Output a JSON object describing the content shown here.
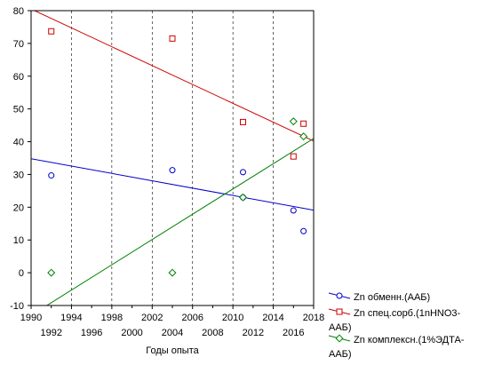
{
  "chart_data": {
    "type": "scatter",
    "title": "",
    "xlabel": "Годы опыта",
    "ylabel": "",
    "xlim": [
      1990,
      2018
    ],
    "ylim": [
      -10,
      80
    ],
    "x_ticks_upper": [
      1990,
      1994,
      1998,
      2002,
      2006,
      2010,
      2014,
      2018
    ],
    "x_ticks_lower": [
      1992,
      1996,
      2000,
      2004,
      2008,
      2012,
      2016
    ],
    "y_ticks": [
      -10,
      0,
      10,
      20,
      30,
      40,
      50,
      60,
      70,
      80
    ],
    "grid": "vertical-dashed",
    "legend_position": "bottom-right",
    "series": [
      {
        "name_lines": [
          "Zn   обменн.(ААБ)"
        ],
        "color": "#0000cc",
        "marker": "circle",
        "points": [
          {
            "x": 1992,
            "y": 29.7
          },
          {
            "x": 2004,
            "y": 31.3
          },
          {
            "x": 2011,
            "y": 30.7
          },
          {
            "x": 2011,
            "y": 23.0
          },
          {
            "x": 2016,
            "y": 19.0
          },
          {
            "x": 2017,
            "y": 12.7
          }
        ],
        "fit": {
          "x": [
            1990,
            2018
          ],
          "y": [
            34.8,
            19.1
          ]
        }
      },
      {
        "name_lines": [
          "Zn спец.сорб.(1nHNO3-",
          "ААБ)"
        ],
        "color": "#cc0000",
        "marker": "square",
        "points": [
          {
            "x": 1992,
            "y": 73.7
          },
          {
            "x": 2004,
            "y": 71.5
          },
          {
            "x": 2011,
            "y": 46.0
          },
          {
            "x": 2016,
            "y": 35.5
          },
          {
            "x": 2017,
            "y": 45.5
          }
        ],
        "fit": {
          "x": [
            1990,
            2018
          ],
          "y": [
            80.5,
            40.2
          ]
        }
      },
      {
        "name_lines": [
          "Zn комплексн.(1%ЭДТА-",
          "ААБ)"
        ],
        "color": "#008000",
        "marker": "diamond",
        "points": [
          {
            "x": 1992,
            "y": 0.0
          },
          {
            "x": 2004,
            "y": 0.0
          },
          {
            "x": 2011,
            "y": 23.0
          },
          {
            "x": 2016,
            "y": 46.2
          },
          {
            "x": 2017,
            "y": 41.6
          }
        ],
        "fit": {
          "x": [
            1990,
            2018
          ],
          "y": [
            -13.0,
            41.0
          ]
        }
      }
    ]
  }
}
